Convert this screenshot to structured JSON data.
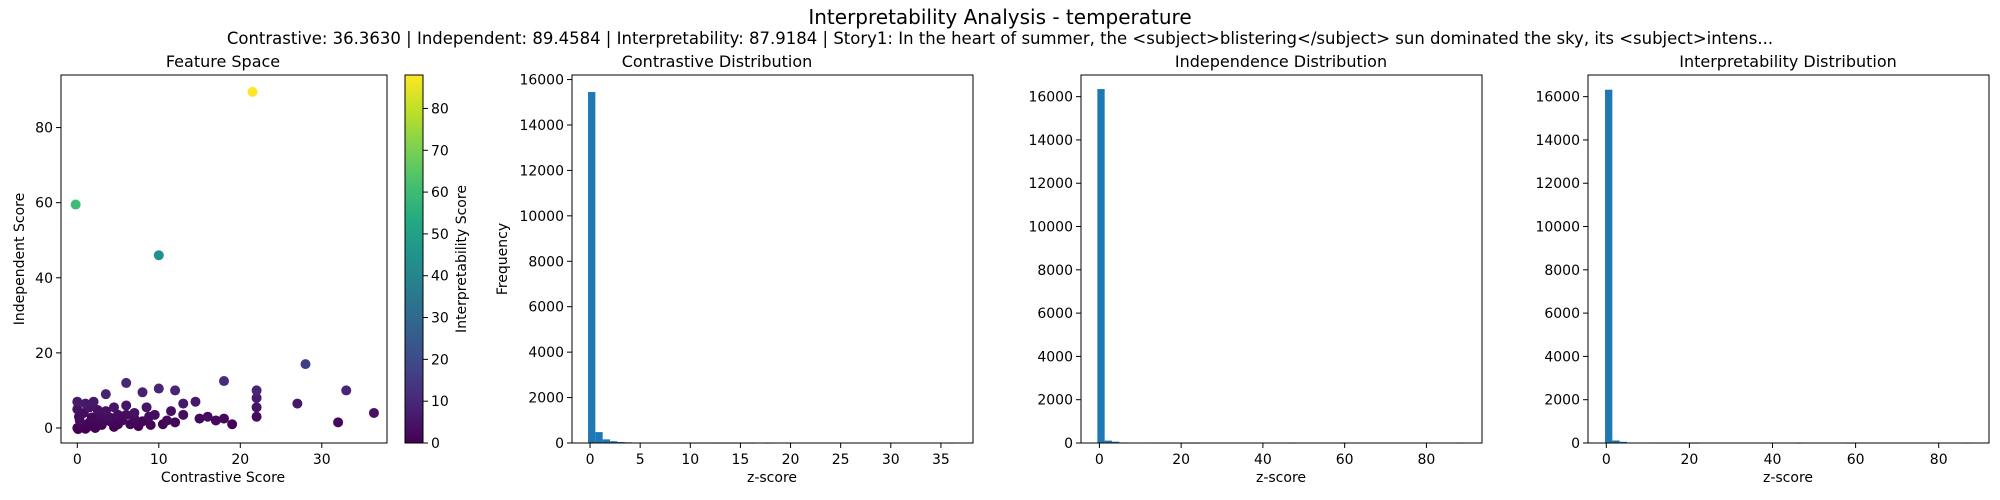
{
  "figure": {
    "title": "Interpretability Analysis - temperature",
    "subtitle": "Contrastive: 36.3630 | Independent: 89.4584 | Interpretability: 87.9184 | Story1: In the heart of summer, the <subject>blistering</subject> sun dominated the sky, its <subject>intens..."
  },
  "colors": {
    "bar": "#1f77b4",
    "axis": "#000000",
    "colormap": "viridis"
  },
  "chart_data": [
    {
      "type": "scatter",
      "title": "Feature Space",
      "xlabel": "Contrastive Score",
      "ylabel": "Independent Score",
      "xlim": [
        -2,
        38
      ],
      "ylim": [
        -4,
        94
      ],
      "xticks": [
        0,
        10,
        20,
        30
      ],
      "yticks": [
        0,
        20,
        40,
        60,
        80
      ],
      "colorbar": {
        "label": "Interpretability Score",
        "range": [
          0,
          88
        ],
        "ticks": [
          0,
          10,
          20,
          30,
          40,
          50,
          60,
          70,
          80
        ]
      },
      "points": [
        {
          "x": 21.5,
          "y": 89.5,
          "c": 87.9
        },
        {
          "x": -0.2,
          "y": 59.5,
          "c": 60
        },
        {
          "x": 10,
          "y": 46,
          "c": 44
        },
        {
          "x": 28,
          "y": 17,
          "c": 16
        },
        {
          "x": 18,
          "y": 12.5,
          "c": 11
        },
        {
          "x": 33,
          "y": 10,
          "c": 9
        },
        {
          "x": 22,
          "y": 10,
          "c": 9
        },
        {
          "x": 22,
          "y": 8,
          "c": 7
        },
        {
          "x": 27,
          "y": 6.5,
          "c": 6
        },
        {
          "x": 36.4,
          "y": 4,
          "c": 4
        },
        {
          "x": 32,
          "y": 1.5,
          "c": 2
        },
        {
          "x": 22,
          "y": 5.5,
          "c": 5
        },
        {
          "x": 22,
          "y": 3,
          "c": 3
        },
        {
          "x": 19,
          "y": 1,
          "c": 1
        },
        {
          "x": 18,
          "y": 2.5,
          "c": 2
        },
        {
          "x": 16,
          "y": 3,
          "c": 3
        },
        {
          "x": 17,
          "y": 2,
          "c": 2
        },
        {
          "x": 15,
          "y": 2.5,
          "c": 2
        },
        {
          "x": 14.5,
          "y": 7,
          "c": 6
        },
        {
          "x": 13,
          "y": 6.5,
          "c": 6
        },
        {
          "x": 13,
          "y": 3.5,
          "c": 3
        },
        {
          "x": 12,
          "y": 10,
          "c": 9
        },
        {
          "x": 10,
          "y": 10.5,
          "c": 9
        },
        {
          "x": 8,
          "y": 9.5,
          "c": 8
        },
        {
          "x": 6,
          "y": 12,
          "c": 10
        },
        {
          "x": 3.5,
          "y": 9,
          "c": 8
        },
        {
          "x": 11.5,
          "y": 4.5,
          "c": 4
        },
        {
          "x": 11,
          "y": 2,
          "c": 2
        },
        {
          "x": 9.5,
          "y": 3.5,
          "c": 3
        },
        {
          "x": 7,
          "y": 2.5,
          "c": 2
        },
        {
          "x": 0,
          "y": 7,
          "c": 6
        },
        {
          "x": 1,
          "y": 6.5,
          "c": 6
        },
        {
          "x": 2,
          "y": 7,
          "c": 6
        },
        {
          "x": 0,
          "y": 5,
          "c": 4
        },
        {
          "x": 4.5,
          "y": 5.5,
          "c": 5
        },
        {
          "x": 6,
          "y": 6,
          "c": 5
        },
        {
          "x": 8.5,
          "y": 5.5,
          "c": 5
        },
        {
          "x": 5,
          "y": 3.5,
          "c": 3
        },
        {
          "x": 10.5,
          "y": 1,
          "c": 1
        },
        {
          "x": 0.2,
          "y": 3,
          "c": 3
        },
        {
          "x": 0.8,
          "y": 4,
          "c": 3
        },
        {
          "x": 1.5,
          "y": 1.5,
          "c": 1
        },
        {
          "x": 2.5,
          "y": 2.5,
          "c": 2
        },
        {
          "x": 3,
          "y": 0.8,
          "c": 1
        },
        {
          "x": 3.5,
          "y": 4.5,
          "c": 4
        },
        {
          "x": 4,
          "y": 1.8,
          "c": 1
        },
        {
          "x": 4.5,
          "y": 0.3,
          "c": 0
        },
        {
          "x": 5.5,
          "y": 2,
          "c": 2
        },
        {
          "x": 6.5,
          "y": 1,
          "c": 1
        },
        {
          "x": 7.5,
          "y": 0.5,
          "c": 0
        },
        {
          "x": 8,
          "y": 1.8,
          "c": 1
        },
        {
          "x": 9,
          "y": 0.8,
          "c": 1
        },
        {
          "x": 0,
          "y": 0,
          "c": 0
        },
        {
          "x": 0.5,
          "y": 1,
          "c": 1
        },
        {
          "x": 1.2,
          "y": 0.2,
          "c": 0
        },
        {
          "x": 2,
          "y": 1.2,
          "c": 1
        },
        {
          "x": 2.8,
          "y": 3.5,
          "c": 3
        },
        {
          "x": 0.3,
          "y": 2,
          "c": 2
        },
        {
          "x": 1.8,
          "y": 2.8,
          "c": 2
        },
        {
          "x": 5,
          "y": 1,
          "c": 1
        },
        {
          "x": 6,
          "y": 3.5,
          "c": 3
        },
        {
          "x": 7,
          "y": 4,
          "c": 4
        },
        {
          "x": 3.2,
          "y": 2,
          "c": 2
        },
        {
          "x": 0.1,
          "y": -0.3,
          "c": 0
        },
        {
          "x": 1,
          "y": -0.2,
          "c": 0
        },
        {
          "x": 2.2,
          "y": 0,
          "c": 0
        },
        {
          "x": 3.8,
          "y": 3,
          "c": 3
        },
        {
          "x": 4.2,
          "y": 2.6,
          "c": 2
        },
        {
          "x": 8.8,
          "y": 3,
          "c": 3
        },
        {
          "x": 12,
          "y": 1.5,
          "c": 1
        },
        {
          "x": 1.5,
          "y": 5.5,
          "c": 5
        },
        {
          "x": 2.5,
          "y": 4.8,
          "c": 4
        }
      ]
    },
    {
      "type": "bar",
      "title": "Contrastive Distribution",
      "xlabel": "z-score",
      "ylabel": "Frequency",
      "xlim": [
        -1.8,
        38.2
      ],
      "ylim": [
        0,
        16200
      ],
      "xticks": [
        0,
        5,
        10,
        15,
        20,
        25,
        30,
        35
      ],
      "yticks": [
        0,
        2000,
        4000,
        6000,
        8000,
        10000,
        12000,
        14000,
        16000
      ],
      "bin_width": 0.73,
      "bin_start": -0.2,
      "values": [
        15450,
        480,
        160,
        80,
        45,
        30,
        20,
        15,
        10,
        8,
        6,
        5,
        4,
        3,
        2,
        2,
        2,
        1,
        1,
        1,
        1,
        1,
        1,
        0,
        1,
        0,
        0,
        1,
        0,
        0,
        0,
        0,
        0,
        0,
        0,
        0,
        0,
        0,
        0,
        0,
        0,
        0,
        0,
        0,
        0,
        0,
        0,
        0,
        0,
        1
      ]
    },
    {
      "type": "bar",
      "title": "Independence Distribution",
      "xlabel": "z-score",
      "ylabel": "",
      "xlim": [
        -4.5,
        93.6
      ],
      "ylim": [
        0,
        17000
      ],
      "xticks": [
        0,
        20,
        40,
        60,
        80
      ],
      "yticks": [
        0,
        2000,
        4000,
        6000,
        8000,
        10000,
        12000,
        14000,
        16000
      ],
      "bin_width": 1.79,
      "bin_start": -0.5,
      "values": [
        16350,
        110,
        60,
        25,
        12,
        8,
        5,
        4,
        3,
        2,
        2,
        1,
        1,
        1,
        0,
        0,
        0,
        0,
        0,
        0,
        0,
        0,
        0,
        0,
        0,
        0,
        1,
        0,
        0,
        0,
        0,
        0,
        0,
        1,
        0,
        0,
        0,
        0,
        0,
        0,
        0,
        0,
        0,
        0,
        0,
        0,
        0,
        0,
        0,
        1
      ]
    },
    {
      "type": "bar",
      "title": "Interpretability Distribution",
      "xlabel": "z-score",
      "ylabel": "",
      "xlim": [
        -4.4,
        92.1
      ],
      "ylim": [
        0,
        17000
      ],
      "xticks": [
        0,
        20,
        40,
        60,
        80
      ],
      "yticks": [
        0,
        2000,
        4000,
        6000,
        8000,
        10000,
        12000,
        14000,
        16000
      ],
      "bin_width": 1.76,
      "bin_start": -0.3,
      "values": [
        16320,
        115,
        55,
        22,
        10,
        6,
        4,
        3,
        2,
        2,
        1,
        1,
        1,
        0,
        0,
        0,
        0,
        0,
        0,
        0,
        0,
        0,
        0,
        0,
        0,
        0,
        1,
        0,
        0,
        0,
        0,
        0,
        0,
        1,
        0,
        0,
        0,
        0,
        0,
        0,
        0,
        0,
        0,
        0,
        0,
        0,
        0,
        0,
        0,
        1
      ]
    }
  ]
}
